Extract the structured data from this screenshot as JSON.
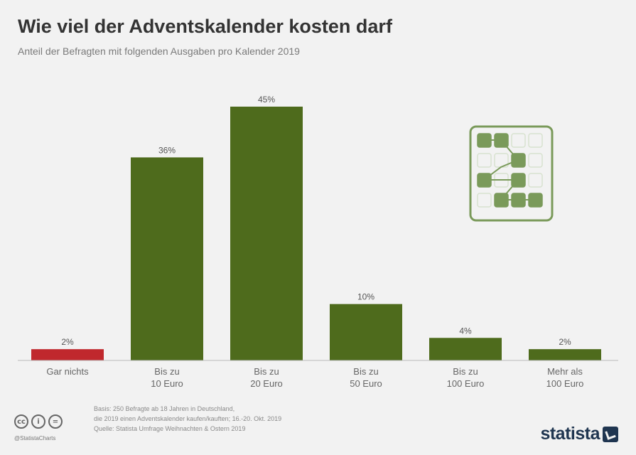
{
  "title": "Wie viel der Adventskalender kosten darf",
  "subtitle": "Anteil der Befragten mit folgenden Ausgaben pro Kalender 2019",
  "chart_data": {
    "type": "bar",
    "categories": [
      "Gar nichts",
      "Bis zu 10 Euro",
      "Bis zu 20 Euro",
      "Bis zu 50 Euro",
      "Bis zu 100 Euro",
      "Mehr als 100 Euro"
    ],
    "category_lines": [
      [
        "Gar nichts"
      ],
      [
        "Bis zu",
        "10 Euro"
      ],
      [
        "Bis zu",
        "20 Euro"
      ],
      [
        "Bis zu",
        "50 Euro"
      ],
      [
        "Bis zu",
        "100 Euro"
      ],
      [
        "Mehr als",
        "100 Euro"
      ]
    ],
    "values": [
      2,
      36,
      45,
      10,
      4,
      2
    ],
    "data_labels": [
      "2%",
      "36%",
      "45%",
      "10%",
      "4%",
      "2%"
    ],
    "unit": "%",
    "colors": [
      "#c0282d",
      "#4e6b1c",
      "#4e6b1c",
      "#4e6b1c",
      "#4e6b1c",
      "#4e6b1c"
    ],
    "ylim": [
      0,
      45
    ],
    "grid": false,
    "legend": "none"
  },
  "colors": {
    "highlight": "#c0282d",
    "bar": "#4e6b1c",
    "icon_green": "#7a9a5a",
    "background": "#f2f2f2"
  },
  "illustration": {
    "icon": "advent-calendar-icon"
  },
  "footer": {
    "note_lines": [
      "Basis: 250 Befragte ab 18 Jahren in Deutschland,",
      "die 2019 einen Adventskalender kaufen/kauften; 16.-20. Okt. 2019",
      "Quelle: Statista Umfrage Weihnachten & Ostern 2019"
    ],
    "handle": "@StatistaCharts",
    "brand": "statista"
  }
}
